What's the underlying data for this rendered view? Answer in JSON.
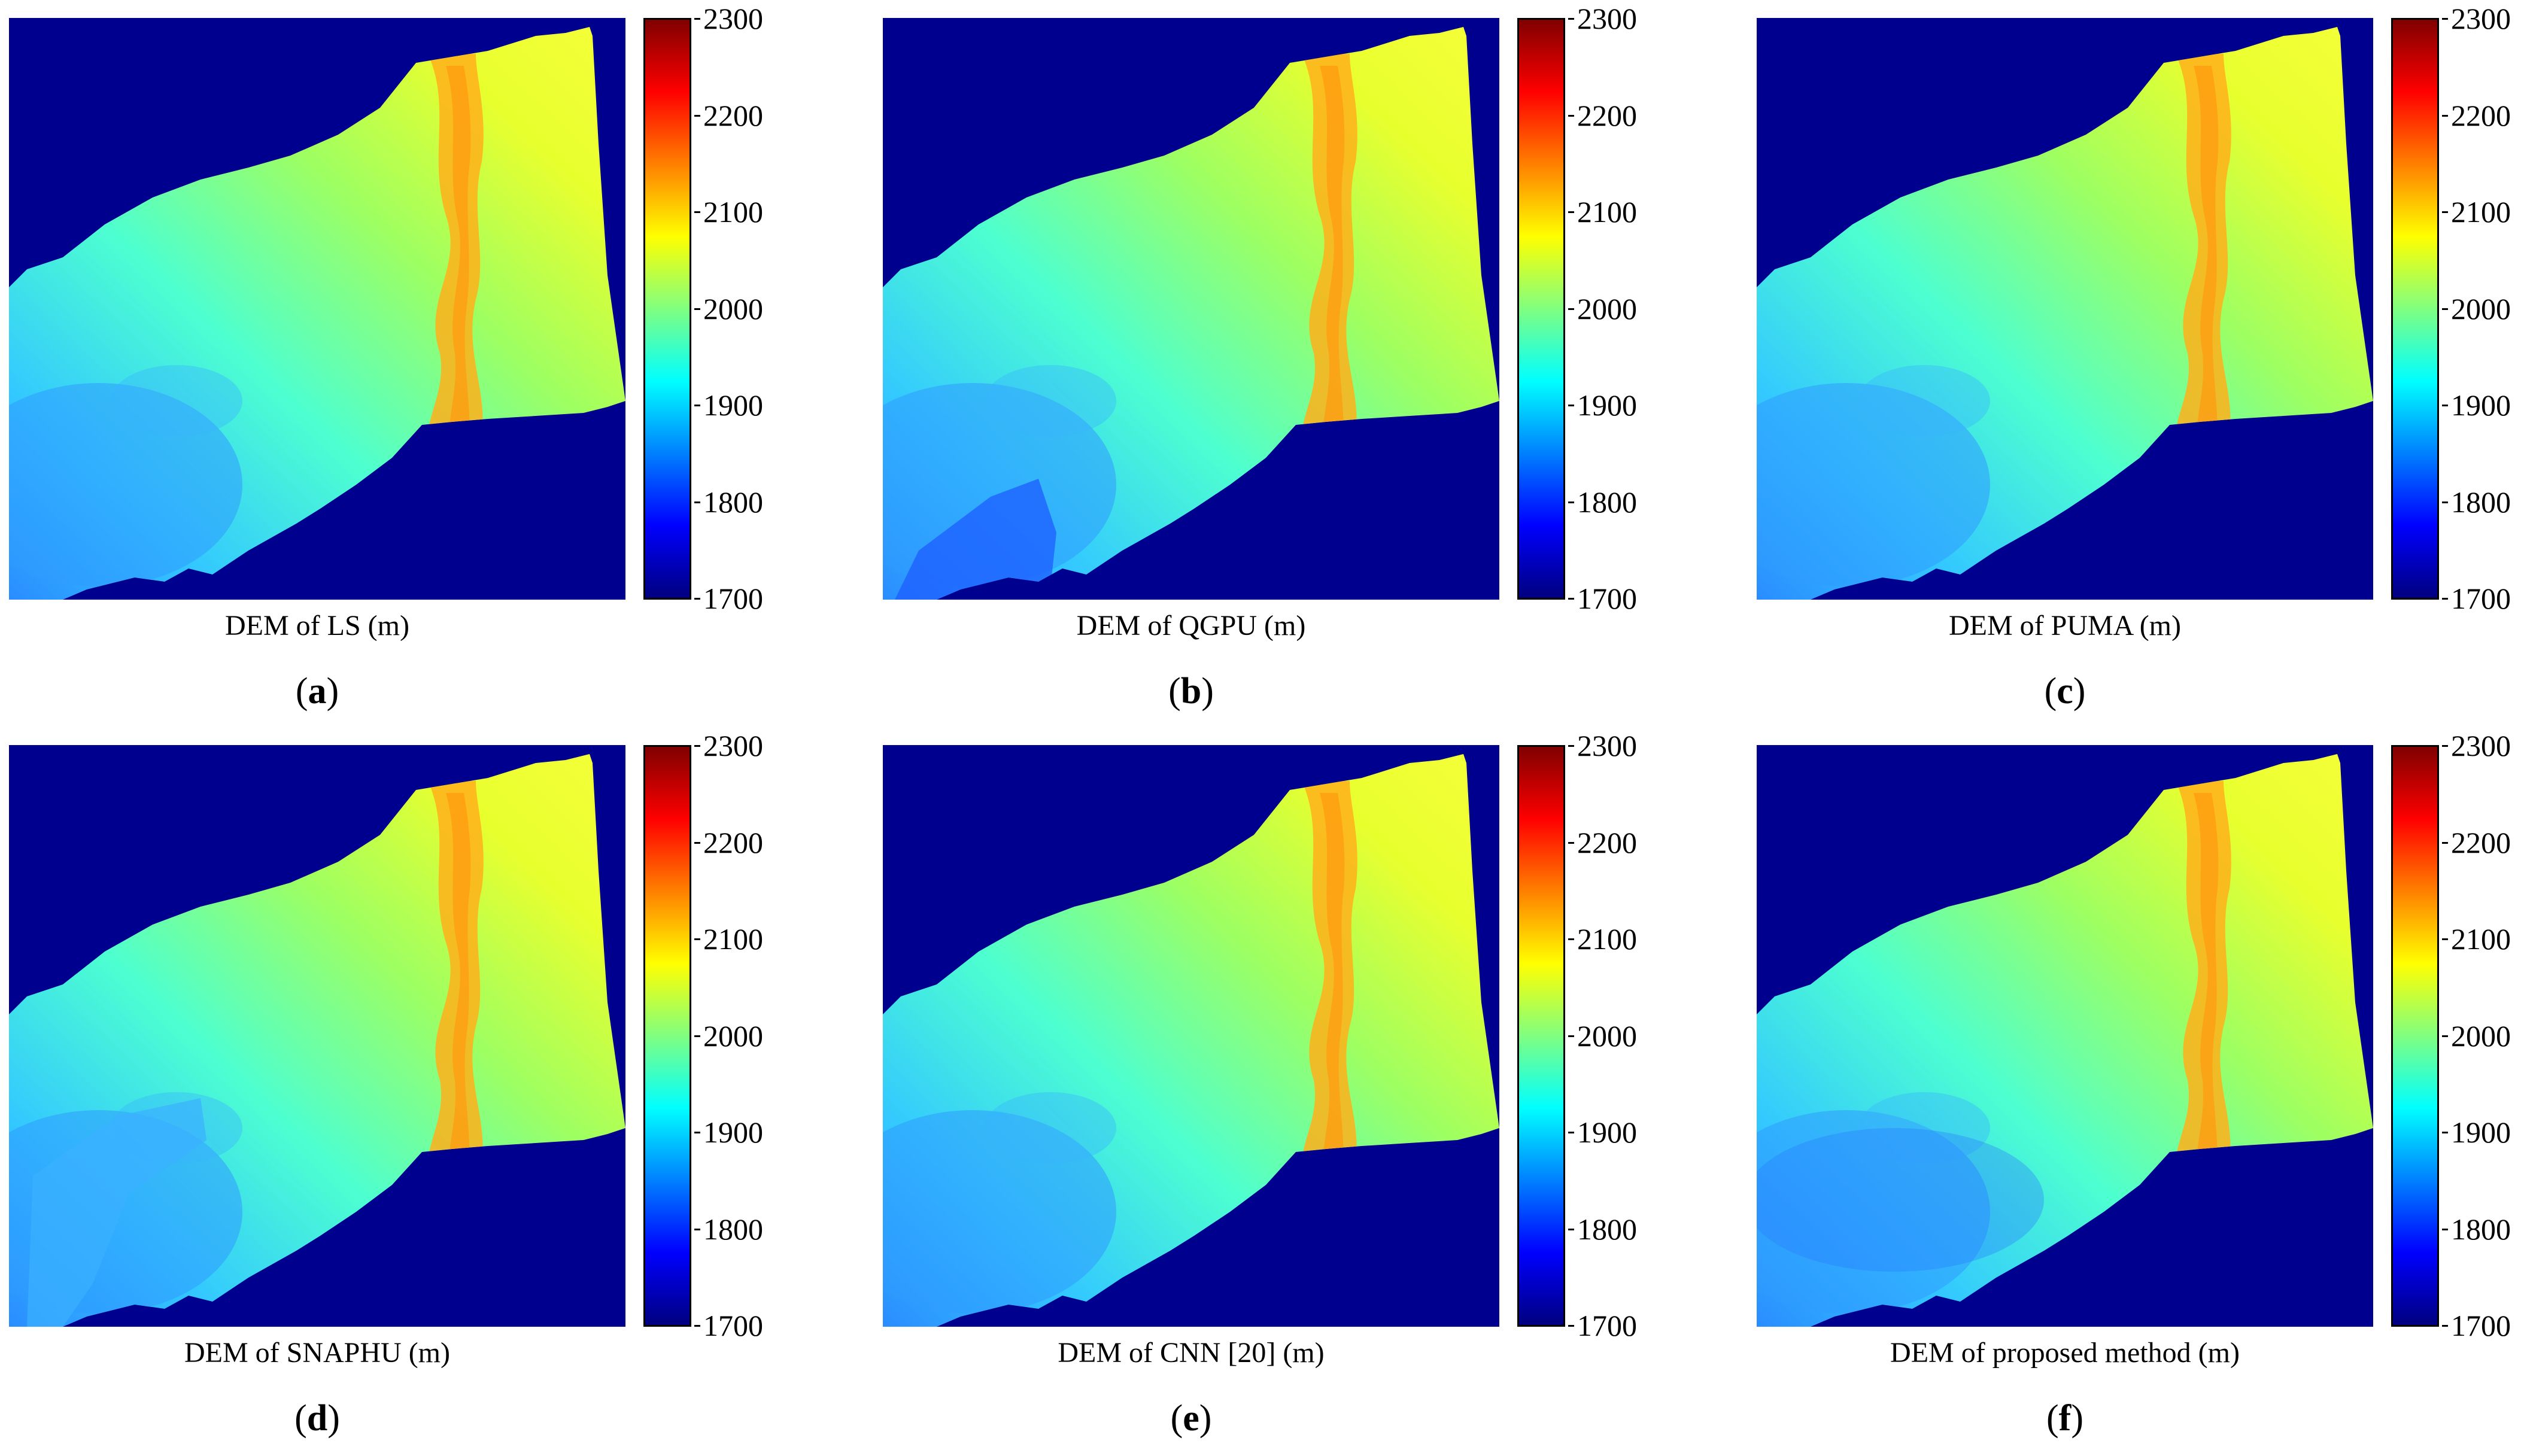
{
  "chart_data": [
    {
      "type": "heatmap",
      "panel": "a",
      "caption": "DEM of LS (m)",
      "colorbar": {
        "min": 1700,
        "max": 2300,
        "ticks": [
          1700,
          1800,
          1900,
          2000,
          2100,
          2200,
          2300
        ]
      }
    },
    {
      "type": "heatmap",
      "panel": "b",
      "caption": "DEM of QGPU (m)",
      "colorbar": {
        "min": 1700,
        "max": 2300,
        "ticks": [
          1700,
          1800,
          1900,
          2000,
          2100,
          2200,
          2300
        ]
      }
    },
    {
      "type": "heatmap",
      "panel": "c",
      "caption": "DEM of PUMA (m)",
      "colorbar": {
        "min": 1700,
        "max": 2300,
        "ticks": [
          1700,
          1800,
          1900,
          2000,
          2100,
          2200,
          2300
        ]
      }
    },
    {
      "type": "heatmap",
      "panel": "d",
      "caption": "DEM of SNAPHU (m)",
      "colorbar": {
        "min": 1700,
        "max": 2300,
        "ticks": [
          1700,
          1800,
          1900,
          2000,
          2100,
          2200,
          2300
        ]
      }
    },
    {
      "type": "heatmap",
      "panel": "e",
      "caption": "DEM of CNN [20] (m)",
      "colorbar": {
        "min": 1700,
        "max": 2300,
        "ticks": [
          1700,
          1800,
          1900,
          2000,
          2100,
          2200,
          2300
        ]
      }
    },
    {
      "type": "heatmap",
      "panel": "f",
      "caption": "DEM of proposed method (m)",
      "colorbar": {
        "min": 1700,
        "max": 2300,
        "ticks": [
          1700,
          1800,
          1900,
          2000,
          2100,
          2200,
          2300
        ]
      }
    }
  ],
  "colors": {
    "background_navy": "#00008f",
    "jet_stops": [
      "#00007f",
      "#0000ff",
      "#0080ff",
      "#00ffff",
      "#80ff80",
      "#ffff00",
      "#ff8000",
      "#ff0000",
      "#800000"
    ]
  },
  "panels": [
    {
      "caption": "DEM of LS (m)",
      "letter": "a"
    },
    {
      "caption": "DEM of QGPU (m)",
      "letter": "b"
    },
    {
      "caption": "DEM of PUMA (m)",
      "letter": "c"
    },
    {
      "caption": "DEM of SNAPHU (m)",
      "letter": "d"
    },
    {
      "caption": "DEM of CNN [20] (m)",
      "letter": "e"
    },
    {
      "caption": "DEM of proposed method (m)",
      "letter": "f"
    }
  ]
}
